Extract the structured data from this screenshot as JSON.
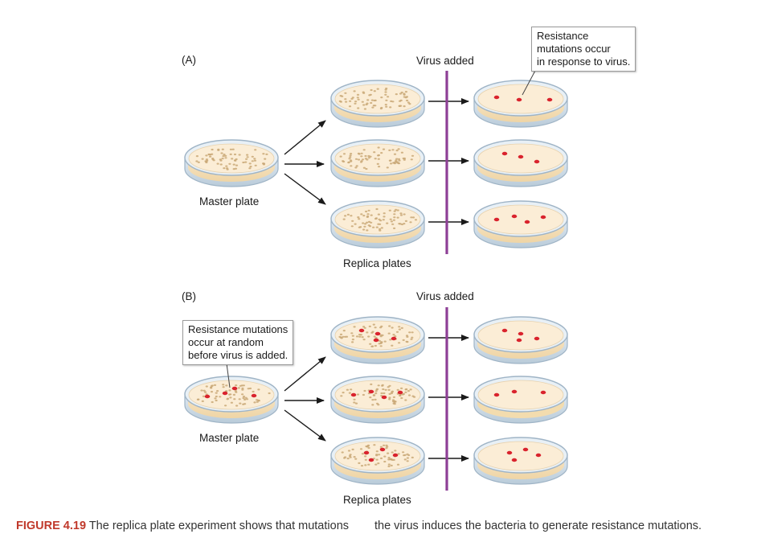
{
  "panels": [
    {
      "id": "A",
      "label": "(A)",
      "virus_label": "Virus added",
      "master_label": "Master plate",
      "replica_label": "Replica plates",
      "callout": [
        "Resistance",
        "mutations occur",
        "in response to virus."
      ],
      "master_colonies_resistant": 0,
      "replica_colonies_resistant": [
        0,
        0,
        0
      ],
      "virus_plate_colonies": [
        3,
        3,
        4
      ]
    },
    {
      "id": "B",
      "label": "(B)",
      "virus_label": "Virus added",
      "master_label": "Master plate",
      "replica_label": "Replica plates",
      "callout": [
        "Resistance mutations",
        "occur at random",
        "before virus is added."
      ],
      "master_colonies_resistant": 4,
      "replica_colonies_resistant": [
        4,
        4,
        4
      ],
      "virus_plate_colonies": [
        4,
        3,
        4
      ]
    }
  ],
  "caption": {
    "figure": "FIGURE 4.19",
    "text": "The replica plate experiment shows that mutations",
    "text_continued": "the virus induces the bacteria to generate resistance mutations."
  },
  "colors": {
    "virus_line": "#8e3f96",
    "resistant_colony": "#d9232d",
    "normal_colony": "#c9a877",
    "agar": "#fbedd6",
    "dish_rim": "#9fb4c6",
    "figure_label": "#c0392b"
  }
}
